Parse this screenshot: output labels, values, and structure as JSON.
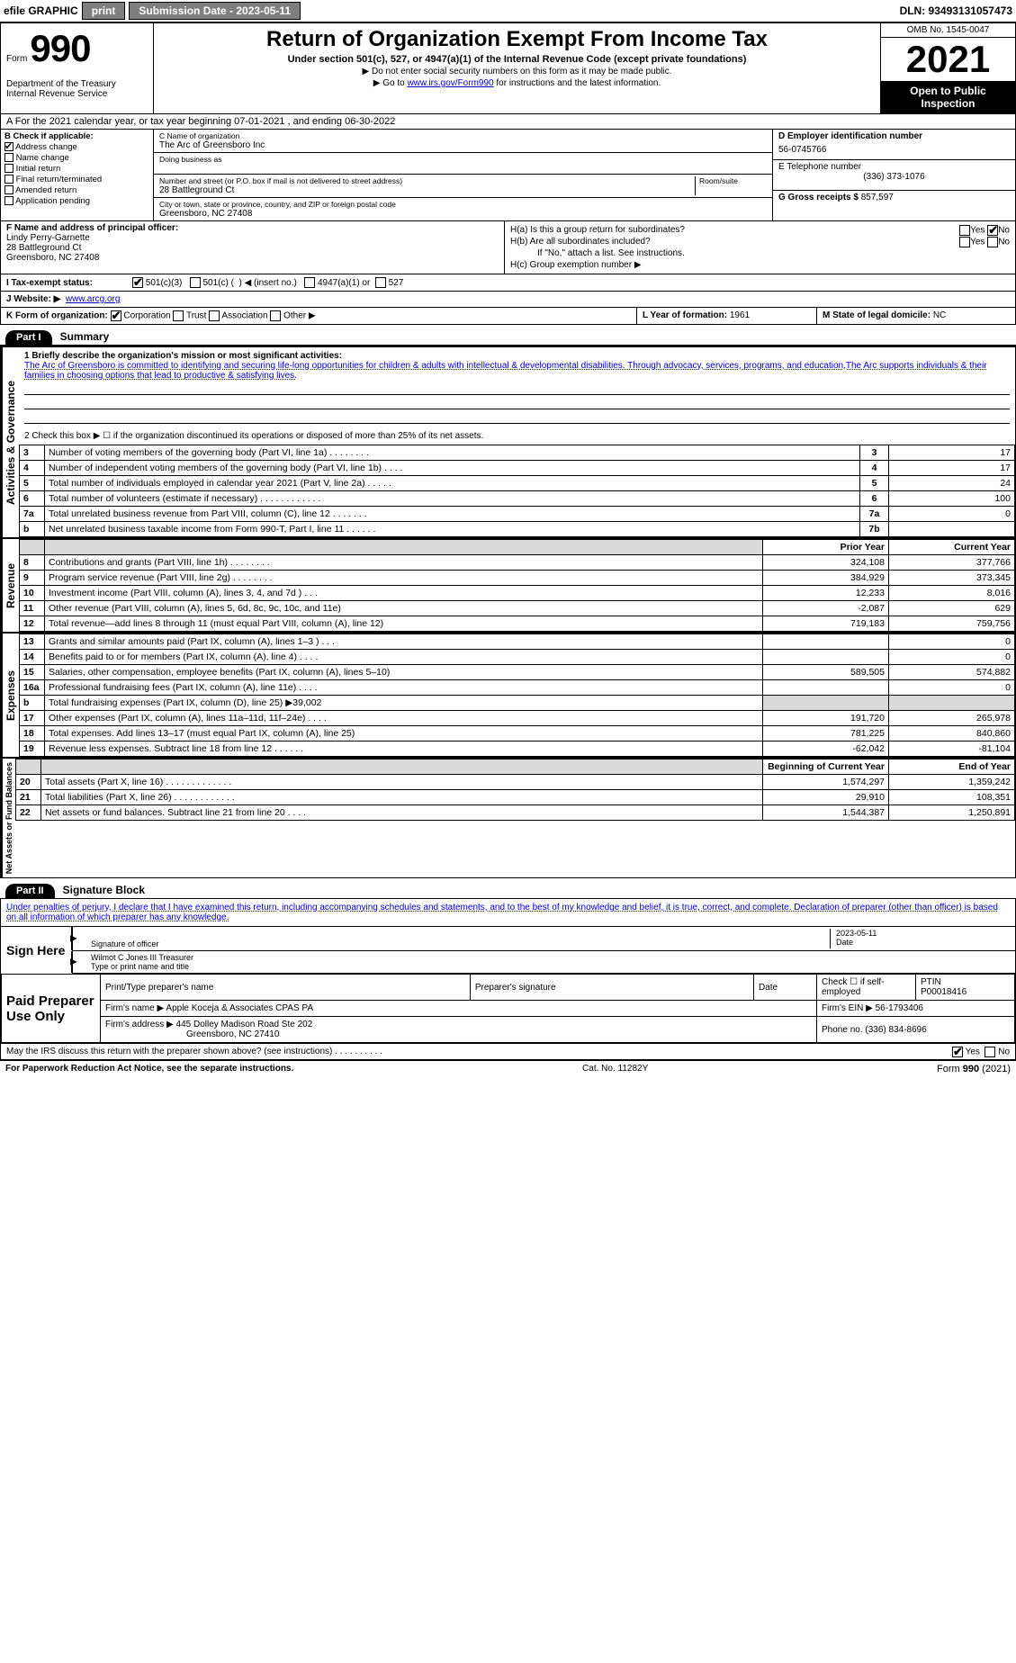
{
  "topbar": {
    "efile": "efile GRAPHIC",
    "print": "print",
    "subdate_label": "Submission Date - 2023-05-11",
    "dln": "DLN: 93493131057473"
  },
  "header": {
    "form_label": "Form",
    "form_num": "990",
    "title": "Return of Organization Exempt From Income Tax",
    "subtitle": "Under section 501(c), 527, or 4947(a)(1) of the Internal Revenue Code (except private foundations)",
    "note1": "▶ Do not enter social security numbers on this form as it may be made public.",
    "note2_pre": "▶ Go to ",
    "note2_link": "www.irs.gov/Form990",
    "note2_post": " for instructions and the latest information.",
    "dept": "Department of the Treasury\nInternal Revenue Service",
    "omb": "OMB No. 1545-0047",
    "year": "2021",
    "open": "Open to Public Inspection"
  },
  "row_a": "A For the 2021 calendar year, or tax year beginning 07-01-2021     , and ending 06-30-2022",
  "col_b": {
    "title": "B Check if applicable:",
    "items": [
      {
        "label": "Address change",
        "checked": true
      },
      {
        "label": "Name change",
        "checked": false
      },
      {
        "label": "Initial return",
        "checked": false
      },
      {
        "label": "Final return/terminated",
        "checked": false
      },
      {
        "label": "Amended return",
        "checked": false
      },
      {
        "label": "Application pending",
        "checked": false
      }
    ]
  },
  "col_c": {
    "name_label": "C Name of organization",
    "name": "The Arc of Greensboro Inc",
    "dba_label": "Doing business as",
    "dba": "",
    "street_label": "Number and street (or P.O. box if mail is not delivered to street address)",
    "room_label": "Room/suite",
    "street": "28 Battleground Ct",
    "city_label": "City or town, state or province, country, and ZIP or foreign postal code",
    "city": "Greensboro, NC  27408"
  },
  "col_d": {
    "ein_label": "D Employer identification number",
    "ein": "56-0745766",
    "phone_label": "E Telephone number",
    "phone": "(336) 373-1076",
    "gross_label": "G Gross receipts $",
    "gross": "857,597"
  },
  "block_f": {
    "label": "F Name and address of principal officer:",
    "name": "Lindy Perry-Garnette",
    "addr1": "28 Battleground Ct",
    "addr2": "Greensboro, NC  27408"
  },
  "block_h": {
    "ha": "H(a)  Is this a group return for subordinates?",
    "ha_no": true,
    "hb": "H(b)  Are all subordinates included?",
    "hb_note": "If \"No,\" attach a list. See instructions.",
    "hc": "H(c)  Group exemption number ▶"
  },
  "row_i": {
    "label": "I  Tax-exempt status:",
    "c501c3": true,
    "opts": "501(c)(3)        501(c) (   ) ◀ (insert no.)        4947(a)(1) or        527"
  },
  "row_j": {
    "label": "J  Website: ▶",
    "url": "www.arcg.org"
  },
  "row_k": {
    "label": "K Form of organization:",
    "corp": true,
    "opts": "Corporation      Trust      Association      Other ▶"
  },
  "row_l": {
    "label": "L Year of formation:",
    "val": "1961"
  },
  "row_m": {
    "label": "M State of legal domicile:",
    "val": "NC"
  },
  "part1": {
    "header": "Part I",
    "title": "Summary",
    "mission_label": "1  Briefly describe the organization's mission or most significant activities:",
    "mission": "The Arc of Greensboro is committed to identifying and securing life-long opportunities for children & adults with intellectual & developmental disabilities. Through advocacy, services, programs, and education,The Arc supports individuals & their families in choosing options that lead to productive & satisfying lives.",
    "line2": "2   Check this box ▶ ☐  if the organization discontinued its operations or disposed of more than 25% of its net assets."
  },
  "governance": {
    "side": "Activities & Governance",
    "rows": [
      {
        "n": "3",
        "label": "Number of voting members of the governing body (Part VI, line 1a)   .    .    .    .    .    .    .    .",
        "box": "3",
        "v": "17"
      },
      {
        "n": "4",
        "label": "Number of independent voting members of the governing body (Part VI, line 1b)   .    .    .    .",
        "box": "4",
        "v": "17"
      },
      {
        "n": "5",
        "label": "Total number of individuals employed in calendar year 2021 (Part V, line 2a)   .    .    .    .    .",
        "box": "5",
        "v": "24"
      },
      {
        "n": "6",
        "label": "Total number of volunteers (estimate if necessary)   .    .    .    .    .    .    .    .    .    .    .    .",
        "box": "6",
        "v": "100"
      },
      {
        "n": "7a",
        "label": "Total unrelated business revenue from Part VIII, column (C), line 12   .    .    .    .    .    .    .",
        "box": "7a",
        "v": "0"
      },
      {
        "n": "b",
        "label": "Net unrelated business taxable income from Form 990-T, Part I, line 11   .    .    .    .    .    .",
        "box": "7b",
        "v": ""
      }
    ]
  },
  "revenue": {
    "side": "Revenue",
    "head_prior": "Prior Year",
    "head_curr": "Current Year",
    "rows": [
      {
        "n": "8",
        "label": "Contributions and grants (Part VIII, line 1h)   .   .   .   .   .   .   .   .",
        "p": "324,108",
        "c": "377,766"
      },
      {
        "n": "9",
        "label": "Program service revenue (Part VIII, line 2g)   .   .   .   .   .   .   .   .",
        "p": "384,929",
        "c": "373,345"
      },
      {
        "n": "10",
        "label": "Investment income (Part VIII, column (A), lines 3, 4, and 7d )   .   .   .",
        "p": "12,233",
        "c": "8,016"
      },
      {
        "n": "11",
        "label": "Other revenue (Part VIII, column (A), lines 5, 6d, 8c, 9c, 10c, and 11e)",
        "p": "-2,087",
        "c": "629"
      },
      {
        "n": "12",
        "label": "Total revenue—add lines 8 through 11 (must equal Part VIII, column (A), line 12)",
        "p": "719,183",
        "c": "759,756"
      }
    ]
  },
  "expenses": {
    "side": "Expenses",
    "rows": [
      {
        "n": "13",
        "label": "Grants and similar amounts paid (Part IX, column (A), lines 1–3 )   .   .   .",
        "p": "",
        "c": "0"
      },
      {
        "n": "14",
        "label": "Benefits paid to or for members (Part IX, column (A), line 4)   .   .   .   .",
        "p": "",
        "c": "0"
      },
      {
        "n": "15",
        "label": "Salaries, other compensation, employee benefits (Part IX, column (A), lines 5–10)",
        "p": "589,505",
        "c": "574,882"
      },
      {
        "n": "16a",
        "label": "Professional fundraising fees (Part IX, column (A), line 11e)   .   .   .   .",
        "p": "",
        "c": "0"
      },
      {
        "n": "b",
        "label": "Total fundraising expenses (Part IX, column (D), line 25) ▶39,002",
        "p": "shaded",
        "c": "shaded"
      },
      {
        "n": "17",
        "label": "Other expenses (Part IX, column (A), lines 11a–11d, 11f–24e)   .   .   .   .",
        "p": "191,720",
        "c": "265,978"
      },
      {
        "n": "18",
        "label": "Total expenses. Add lines 13–17 (must equal Part IX, column (A), line 25)",
        "p": "781,225",
        "c": "840,860"
      },
      {
        "n": "19",
        "label": "Revenue less expenses. Subtract line 18 from line 12   .   .   .   .   .   .",
        "p": "-62,042",
        "c": "-81,104"
      }
    ]
  },
  "netassets": {
    "side": "Net Assets or Fund Balances",
    "head_begin": "Beginning of Current Year",
    "head_end": "End of Year",
    "rows": [
      {
        "n": "20",
        "label": "Total assets (Part X, line 16)   .   .   .   .   .   .   .   .   .   .   .   .   .",
        "p": "1,574,297",
        "c": "1,359,242"
      },
      {
        "n": "21",
        "label": "Total liabilities (Part X, line 26)   .   .   .   .   .   .   .   .   .   .   .   .",
        "p": "29,910",
        "c": "108,351"
      },
      {
        "n": "22",
        "label": "Net assets or fund balances. Subtract line 21 from line 20   .   .   .   .",
        "p": "1,544,387",
        "c": "1,250,891"
      }
    ]
  },
  "part2": {
    "header": "Part II",
    "title": "Signature Block",
    "decl": "Under penalties of perjury, I declare that I have examined this return, including accompanying schedules and statements, and to the best of my knowledge and belief, it is true, correct, and complete. Declaration of preparer (other than officer) is based on all information of which preparer has any knowledge."
  },
  "sign": {
    "left": "Sign Here",
    "sig_label": "Signature of officer",
    "date": "2023-05-11",
    "date_label": "Date",
    "name": "Wilmot C Jones III Treasurer",
    "name_label": "Type or print name and title"
  },
  "preparer": {
    "left": "Paid Preparer Use Only",
    "h1": "Print/Type preparer's name",
    "h2": "Preparer's signature",
    "h3": "Date",
    "h4": "Check ☐ if self-employed",
    "h5_label": "PTIN",
    "h5": "P00018416",
    "firm_label": "Firm's name    ▶",
    "firm": "Apple Koceja & Associates CPAS PA",
    "ein_label": "Firm's EIN ▶",
    "ein": "56-1793406",
    "addr_label": "Firm's address ▶",
    "addr1": "445 Dolley Madison Road Ste 202",
    "addr2": "Greensboro, NC  27410",
    "phone_label": "Phone no.",
    "phone": "(336) 834-8696"
  },
  "discuss": {
    "q": "May the IRS discuss this return with the preparer shown above? (see instructions)   .   .   .   .   .   .   .   .   .   .",
    "yes": true
  },
  "footer": {
    "left": "For Paperwork Reduction Act Notice, see the separate instructions.",
    "mid": "Cat. No. 11282Y",
    "right": "Form 990 (2021)"
  },
  "colors": {
    "link": "#0000cc",
    "shaded": "#d9d9d9",
    "btn_bg": "#7f7f7f"
  }
}
